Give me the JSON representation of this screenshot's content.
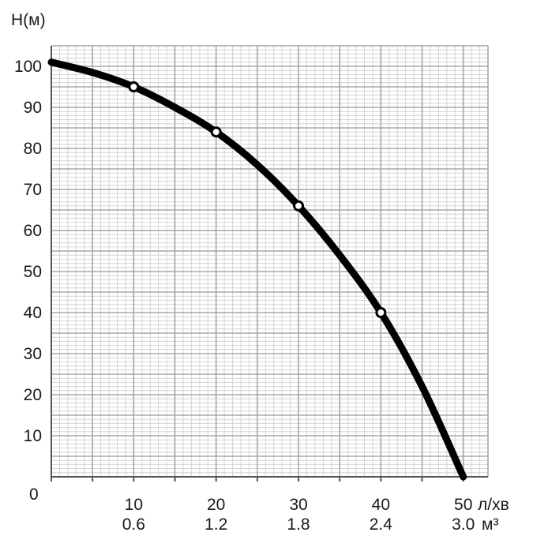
{
  "chart_data": {
    "type": "line",
    "title": "",
    "ylabel": "H(м)",
    "xlabel": "л/хв",
    "xlabel_secondary": "м³",
    "xlim": [
      0,
      53
    ],
    "ylim": [
      0,
      105
    ],
    "origin_label": "0",
    "x_ticks": [
      {
        "value": 10,
        "label": "10",
        "sublabel": "0.6"
      },
      {
        "value": 20,
        "label": "20",
        "sublabel": "1.2"
      },
      {
        "value": 30,
        "label": "30",
        "sublabel": "1.8"
      },
      {
        "value": 40,
        "label": "40",
        "sublabel": "2.4"
      },
      {
        "value": 50,
        "label": "50",
        "sublabel": "3.0"
      }
    ],
    "y_ticks": [
      10,
      20,
      30,
      40,
      50,
      60,
      70,
      80,
      90,
      100
    ],
    "grid": true,
    "series": [
      {
        "color": "#000000",
        "x": [
          0,
          5,
          10,
          15,
          20,
          25,
          30,
          35,
          40,
          45,
          50
        ],
        "y": [
          101,
          98.5,
          95,
          90,
          84,
          76,
          66,
          54,
          40,
          22,
          0
        ]
      }
    ],
    "markers": [
      {
        "x": 10,
        "y": 95
      },
      {
        "x": 20,
        "y": 84
      },
      {
        "x": 30,
        "y": 66
      },
      {
        "x": 40,
        "y": 40
      }
    ]
  }
}
